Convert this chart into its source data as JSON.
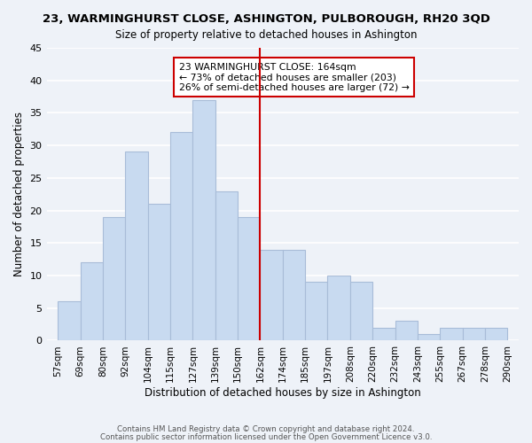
{
  "title": "23, WARMINGHURST CLOSE, ASHINGTON, PULBOROUGH, RH20 3QD",
  "subtitle": "Size of property relative to detached houses in Ashington",
  "xlabel": "Distribution of detached houses by size in Ashington",
  "ylabel": "Number of detached properties",
  "bin_edges_labels": [
    "57sqm",
    "69sqm",
    "80sqm",
    "92sqm",
    "104sqm",
    "115sqm",
    "127sqm",
    "139sqm",
    "150sqm",
    "162sqm",
    "174sqm",
    "185sqm",
    "197sqm",
    "208sqm",
    "220sqm",
    "232sqm",
    "243sqm",
    "255sqm",
    "267sqm",
    "278sqm",
    "290sqm"
  ],
  "bar_values": [
    6,
    12,
    19,
    29,
    21,
    32,
    37,
    23,
    19,
    14,
    14,
    9,
    10,
    9,
    2,
    3,
    1,
    2,
    2,
    2
  ],
  "bar_color": "#c8daf0",
  "bar_edge_color": "#a8bcd8",
  "reference_line_index": 9,
  "reference_line_color": "#cc0000",
  "annotation_text": "23 WARMINGHURST CLOSE: 164sqm\n← 73% of detached houses are smaller (203)\n26% of semi-detached houses are larger (72) →",
  "annotation_box_edge_color": "#cc0000",
  "ylim": [
    0,
    45
  ],
  "yticks": [
    0,
    5,
    10,
    15,
    20,
    25,
    30,
    35,
    40,
    45
  ],
  "footer1": "Contains HM Land Registry data © Crown copyright and database right 2024.",
  "footer2": "Contains public sector information licensed under the Open Government Licence v3.0.",
  "bg_color": "#eef2f8",
  "grid_color": "#ffffff"
}
